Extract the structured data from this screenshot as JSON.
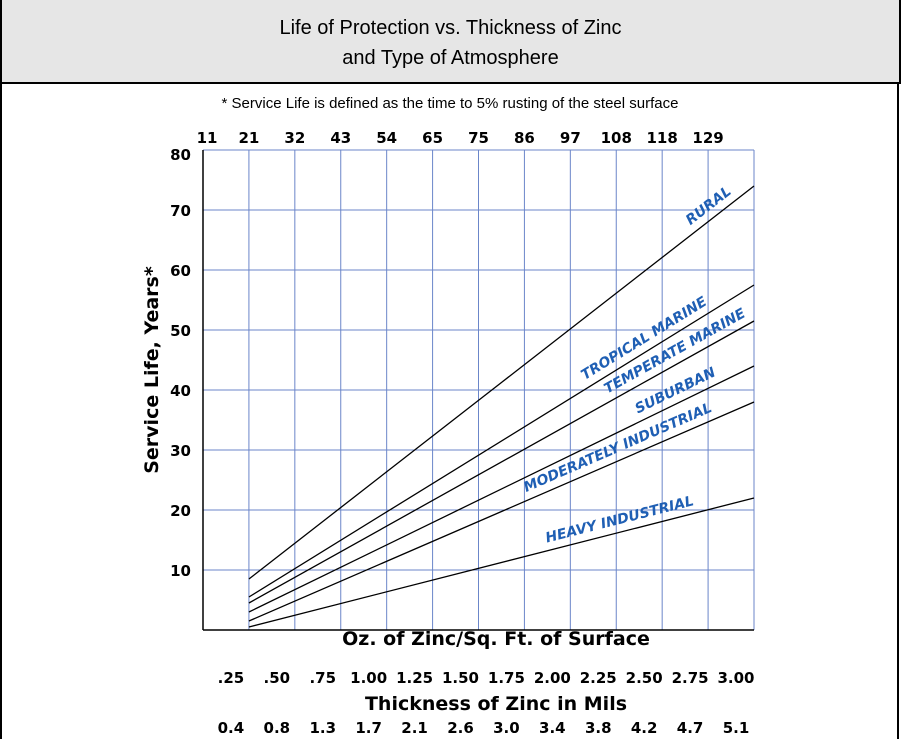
{
  "title": {
    "line1": "Life of Protection vs. Thickness of Zinc",
    "line2": "and Type of Atmosphere"
  },
  "footnote": "* Service Life is defined as the time to 5% rusting of the steel surface",
  "chart_data": {
    "type": "line",
    "title": "Life of Protection vs. Thickness of Zinc and Type of Atmosphere",
    "ylabel": "Service Life, Years*",
    "ylim": [
      0,
      80
    ],
    "yticks": [
      10,
      20,
      30,
      40,
      50,
      60,
      70,
      80
    ],
    "xlim": [
      0.25,
      3.0
    ],
    "top_axis_labels": [
      "11",
      "21",
      "32",
      "43",
      "54",
      "65",
      "75",
      "86",
      "97",
      "108",
      "118",
      "129"
    ],
    "oz_label": "Oz. of Zinc/Sq. Ft. of Surface",
    "oz_ticks": [
      ".25",
      ".50",
      ".75",
      "1.00",
      "1.25",
      "1.50",
      "1.75",
      "2.00",
      "2.25",
      "2.50",
      "2.75",
      "3.00"
    ],
    "mils_label": "Thickness of Zinc in Mils",
    "mils_ticks": [
      "0.4",
      "0.8",
      "1.3",
      "1.7",
      "2.1",
      "2.6",
      "3.0",
      "3.4",
      "3.8",
      "4.2",
      "4.7",
      "5.1"
    ],
    "grid": true,
    "series": [
      {
        "name": "RURAL",
        "x": [
          0.25,
          3.0
        ],
        "y": [
          8.5,
          74
        ]
      },
      {
        "name": "TROPICAL MARINE",
        "x": [
          0.25,
          3.0
        ],
        "y": [
          5.5,
          57.5
        ]
      },
      {
        "name": "TEMPERATE MARINE",
        "x": [
          0.25,
          3.0
        ],
        "y": [
          4.5,
          51.5
        ]
      },
      {
        "name": "SUBURBAN",
        "x": [
          0.25,
          3.0
        ],
        "y": [
          3,
          44
        ]
      },
      {
        "name": "MODERATELY INDUSTRIAL",
        "x": [
          0.25,
          3.0
        ],
        "y": [
          1.5,
          38
        ]
      },
      {
        "name": "HEAVY INDUSTRIAL",
        "x": [
          0.25,
          3.0
        ],
        "y": [
          0.5,
          22
        ]
      }
    ],
    "colors": {
      "grid": "#6b86c9",
      "line": "#000000",
      "label": "#1f5fb4"
    }
  }
}
